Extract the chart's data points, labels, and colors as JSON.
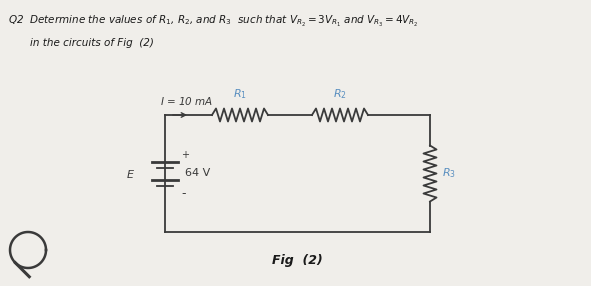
{
  "bg_color": "#f0eeea",
  "title_line1": "Q2  Determine the values of $R_1$, $R_2$, and $R_3$  such that $V_{R_2} = 3V_{R_1}$ and $V_{R_3} = 4V_{R_2}$",
  "title_line2": "in the circuits of Fig  (2)",
  "fig_label": "Fig  (2)",
  "current_label": "$I$ = 10 mA",
  "voltage_label": "64 V",
  "E_label": "$E$",
  "R1_label": "$R_1$",
  "R2_label": "$R_2$",
  "R3_label": "$R_3$",
  "circuit_color": "#3a3a3a",
  "label_color": "#5a8fc0",
  "text_color": "#1a1a1a",
  "plus_label": "+",
  "minus_label": "-"
}
